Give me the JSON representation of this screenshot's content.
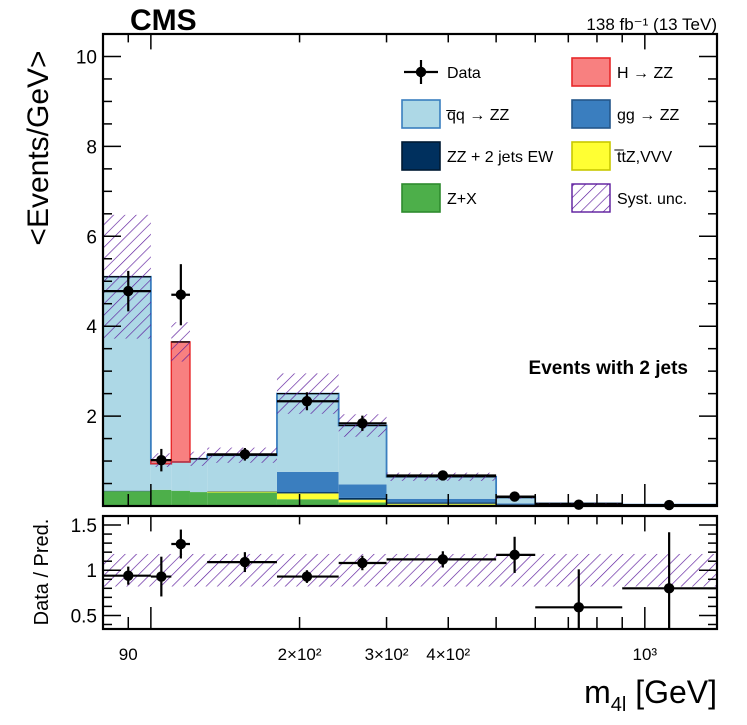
{
  "chart_data": {
    "type": "bar",
    "experiment": "CMS",
    "lumi_text": "138 fb⁻¹ (13 TeV)",
    "category_label": "Events with 2 jets",
    "xlabel": "m₄ₗ [GeV]",
    "ylabel": "<Events/GeV>",
    "ratio_ylabel": "Data / Pred.",
    "xscale": "log",
    "xlim": [
      80,
      1400
    ],
    "ylim": [
      0,
      10.5
    ],
    "ratio_ylim": [
      0.35,
      1.6
    ],
    "x_ticks": [
      {
        "value": 90,
        "label": "90"
      },
      {
        "value": 200,
        "label": "2×10²"
      },
      {
        "value": 300,
        "label": "3×10²"
      },
      {
        "value": 400,
        "label": "4×10²"
      },
      {
        "value": 1000,
        "label": "10³"
      }
    ],
    "y_ticks": [
      2,
      4,
      6,
      8,
      10
    ],
    "ratio_y_ticks": [
      0.5,
      1,
      1.5
    ],
    "bins": [
      [
        80,
        100
      ],
      [
        100,
        110
      ],
      [
        110,
        120
      ],
      [
        120,
        130
      ],
      [
        130,
        180
      ],
      [
        180,
        240
      ],
      [
        240,
        300
      ],
      [
        300,
        500
      ],
      [
        500,
        600
      ],
      [
        600,
        900
      ],
      [
        900,
        1400
      ]
    ],
    "stack": [
      {
        "key": "zx",
        "name": "Z+X",
        "color": "#4daf4a",
        "edge": "#2e8b2e",
        "values": [
          0.33,
          0.36,
          0.34,
          0.31,
          0.3,
          0.15,
          0.08,
          0.03,
          0.01,
          0.005,
          0.003
        ]
      },
      {
        "key": "ttz",
        "name": "t̅tZ,VVV",
        "color": "#ffff33",
        "edge": "#c8c800",
        "values": [
          0.0,
          0.0,
          0.0,
          0.0,
          0.02,
          0.13,
          0.06,
          0.02,
          0.01,
          0.003,
          0.002
        ]
      },
      {
        "key": "ew",
        "name": "ZZ + 2 jets EW",
        "color": "#00305e",
        "edge": "#001a33",
        "values": [
          0.01,
          0.0,
          0.0,
          0.0,
          0.01,
          0.03,
          0.04,
          0.03,
          0.02,
          0.01,
          0.005
        ]
      },
      {
        "key": "gg",
        "name": "gg → ZZ",
        "color": "#3a7ebf",
        "edge": "#24578a",
        "values": [
          0.0,
          0.0,
          0.0,
          0.0,
          0.0,
          0.45,
          0.3,
          0.08,
          0.02,
          0.01,
          0.005
        ]
      },
      {
        "key": "qq",
        "name": "q̅q → ZZ",
        "color": "#add8e6",
        "edge": "#3a7ebf",
        "values": [
          4.76,
          0.58,
          0.64,
          0.74,
          0.8,
          1.74,
          1.31,
          0.49,
          0.13,
          0.03,
          0.015
        ]
      },
      {
        "key": "higgs",
        "name": "H → ZZ",
        "color": "#f88080",
        "edge": "#e8282a",
        "values": [
          0.0,
          0.08,
          2.67,
          0.0,
          0.0,
          0.0,
          0.0,
          0.0,
          0.0,
          0.0,
          0.0
        ]
      }
    ],
    "syst_unc_rel": [
      0.27,
      0.15,
      0.12,
      0.15,
      0.15,
      0.18,
      0.14,
      0.14,
      0.14,
      0.15,
      0.15
    ],
    "data": {
      "name": "Data",
      "x": [
        90,
        105,
        115,
        155,
        207,
        268,
        390,
        545,
        735,
        1120
      ],
      "y": [
        4.78,
        1.02,
        4.7,
        1.15,
        2.33,
        1.84,
        0.68,
        0.21,
        0.03,
        0.02
      ],
      "yerr": [
        0.45,
        0.25,
        0.68,
        0.14,
        0.2,
        0.17,
        0.06,
        0.04,
        0.02,
        0.02
      ]
    },
    "ratio": {
      "x": [
        90,
        105,
        115,
        155,
        207,
        268,
        390,
        545,
        735,
        1120
      ],
      "xlo": [
        80,
        100,
        110,
        130,
        180,
        240,
        300,
        500,
        600,
        900
      ],
      "xhi": [
        100,
        110,
        120,
        180,
        240,
        300,
        500,
        600,
        900,
        1400
      ],
      "y": [
        0.94,
        0.93,
        1.29,
        1.09,
        0.93,
        1.08,
        1.12,
        1.17,
        0.59,
        0.8
      ],
      "yerr": [
        0.1,
        0.22,
        0.16,
        0.11,
        0.07,
        0.08,
        0.09,
        0.2,
        0.42,
        0.62
      ],
      "unc": 0.18
    },
    "legend": [
      {
        "key": "data",
        "label": "Data",
        "style": "marker"
      },
      {
        "key": "higgs",
        "label": "H → ZZ",
        "style": "box"
      },
      {
        "key": "qq",
        "label": "q̅q → ZZ",
        "style": "box"
      },
      {
        "key": "gg",
        "label": "gg → ZZ",
        "style": "box"
      },
      {
        "key": "ew",
        "label": "ZZ + 2 jets EW",
        "style": "box"
      },
      {
        "key": "ttz",
        "label": "t̅tZ,VVV",
        "style": "box"
      },
      {
        "key": "zx",
        "label": "Z+X",
        "style": "box"
      },
      {
        "key": "syst",
        "label": "Syst. unc.",
        "style": "hatch"
      }
    ],
    "colors": {
      "hatch": "#5b1a9c",
      "frame": "#000000"
    }
  }
}
